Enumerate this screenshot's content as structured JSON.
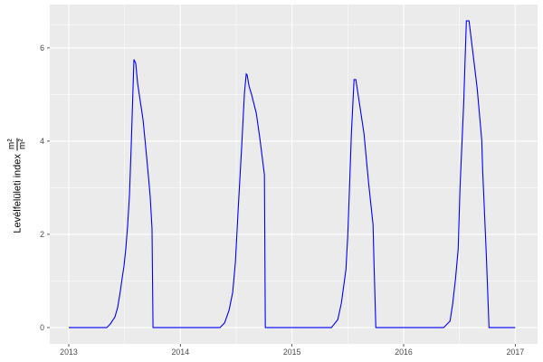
{
  "chart_data": {
    "type": "line",
    "title": "",
    "xlabel": "",
    "ylabel": "Levélfelületi index",
    "ylabel_unit_numerator": "m²",
    "ylabel_unit_denominator": "m²",
    "xlim": [
      2012.83,
      2017.2
    ],
    "ylim": [
      -0.35,
      6.93
    ],
    "x_ticks": [
      2013,
      2014,
      2015,
      2016,
      2017
    ],
    "x_tick_labels": [
      "2013",
      "2014",
      "2015",
      "2016",
      "2017"
    ],
    "y_ticks": [
      0,
      2,
      4,
      6
    ],
    "y_tick_labels": [
      "0",
      "2",
      "4",
      "6"
    ],
    "grid": true,
    "background": "#ebebeb",
    "series": [
      {
        "color": "#0000ff",
        "x": [
          2013.0,
          2013.341,
          2013.373,
          2013.414,
          2013.438,
          2013.462,
          2013.479,
          2013.495,
          2013.511,
          2013.527,
          2013.544,
          2013.56,
          2013.576,
          2013.584,
          2013.6,
          2013.617,
          2013.641,
          2013.665,
          2013.69,
          2013.714,
          2013.73,
          2013.746,
          2013.755,
          2014.355,
          2014.396,
          2014.436,
          2014.469,
          2014.493,
          2014.517,
          2014.55,
          2014.574,
          2014.59,
          2014.598,
          2014.615,
          2014.639,
          2014.68,
          2014.712,
          2014.736,
          2014.753,
          2014.761,
          2015.353,
          2015.41,
          2015.442,
          2015.483,
          2015.499,
          2015.515,
          2015.532,
          2015.556,
          2015.572,
          2015.605,
          2015.645,
          2015.686,
          2015.726,
          2015.734,
          2015.751,
          2016.359,
          2016.416,
          2016.44,
          2016.465,
          2016.489,
          2016.505,
          2016.538,
          2016.562,
          2016.586,
          2016.627,
          2016.659,
          2016.7,
          2016.708,
          2016.741,
          2016.765,
          2017.0
        ],
        "y": [
          0,
          0,
          0.08,
          0.23,
          0.43,
          0.78,
          1.07,
          1.32,
          1.69,
          2.17,
          2.85,
          3.92,
          5.15,
          5.75,
          5.67,
          5.24,
          4.85,
          4.47,
          3.86,
          3.24,
          2.8,
          2.12,
          0,
          0,
          0.1,
          0.37,
          0.76,
          1.4,
          2.5,
          3.92,
          5.03,
          5.44,
          5.42,
          5.18,
          4.99,
          4.6,
          4.06,
          3.6,
          3.28,
          0,
          0,
          0.17,
          0.52,
          1.24,
          1.94,
          2.99,
          4.16,
          5.32,
          5.32,
          4.8,
          4.16,
          3.11,
          2.21,
          1.44,
          0,
          0,
          0.14,
          0.52,
          1.05,
          1.69,
          2.99,
          4.8,
          6.58,
          6.58,
          5.77,
          5.13,
          4.02,
          3.38,
          1.55,
          0,
          0
        ]
      }
    ]
  }
}
